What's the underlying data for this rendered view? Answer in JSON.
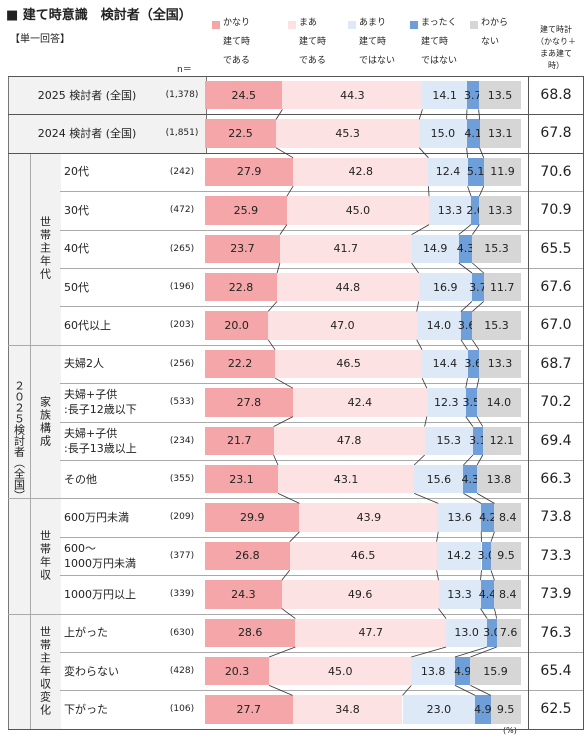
{
  "title": "■ 建て時意識　検討者（全国）",
  "subtitle": "【単一回答】",
  "n_header": "n＝",
  "total_header": [
    "建て時計",
    "（かなり＋",
    "まあ建て",
    "時）"
  ],
  "unit": "(%)",
  "legend": [
    {
      "lines": [
        "かなり",
        "建て時",
        "である"
      ],
      "color": "#f4a6a8"
    },
    {
      "lines": [
        "まあ",
        "建て時",
        "である"
      ],
      "color": "#fde2e3"
    },
    {
      "lines": [
        "あまり",
        "建て時",
        "ではない"
      ],
      "color": "#dde9f7"
    },
    {
      "lines": [
        "まったく",
        "建て時",
        "ではない"
      ],
      "color": "#6e9fd9"
    },
    {
      "lines": [
        "わから",
        "ない"
      ],
      "color": "#d6d6d6"
    }
  ],
  "groups": [
    {
      "label": "世帯主年代",
      "rows": [
        2,
        6
      ]
    },
    {
      "label": "家族構成",
      "rows": [
        7,
        10
      ]
    },
    {
      "label": "世帯年収",
      "rows": [
        11,
        13
      ]
    },
    {
      "label": "世帯主年収変化",
      "rows": [
        14,
        16
      ]
    }
  ],
  "outer_group": {
    "label": "２０２５検討者（全国）"
  },
  "chart_data": {
    "type": "bar",
    "stacked": true,
    "orientation": "horizontal",
    "xlim": [
      0,
      100
    ],
    "series_names": [
      "かなり建て時である",
      "まあ建て時である",
      "あまり建て時ではない",
      "まったく建て時ではない",
      "わからない"
    ],
    "rows": [
      {
        "label": "2025 検討者 (全国)",
        "n": "(1,378)",
        "values": [
          24.5,
          44.3,
          14.1,
          3.7,
          13.5
        ],
        "total": "68.8"
      },
      {
        "label": "2024 検討者 (全国)",
        "n": "(1,851)",
        "values": [
          22.5,
          45.3,
          15.0,
          4.1,
          13.1
        ],
        "total": "67.8"
      },
      {
        "label": "20代",
        "n": "(242)",
        "values": [
          27.9,
          42.8,
          12.4,
          5.1,
          11.9
        ],
        "total": "70.6"
      },
      {
        "label": "30代",
        "n": "(472)",
        "values": [
          25.9,
          45.0,
          13.3,
          2.6,
          13.3
        ],
        "total": "70.9"
      },
      {
        "label": "40代",
        "n": "(265)",
        "values": [
          23.7,
          41.7,
          14.9,
          4.3,
          15.3
        ],
        "total": "65.5"
      },
      {
        "label": "50代",
        "n": "(196)",
        "values": [
          22.8,
          44.8,
          16.9,
          3.7,
          11.7
        ],
        "total": "67.6"
      },
      {
        "label": "60代以上",
        "n": "(203)",
        "values": [
          20.0,
          47.0,
          14.0,
          3.6,
          15.3
        ],
        "total": "67.0"
      },
      {
        "label": "夫婦2人",
        "n": "(256)",
        "values": [
          22.2,
          46.5,
          14.4,
          3.6,
          13.3
        ],
        "total": "68.7"
      },
      {
        "label": "夫婦+子供\n:長子12歳以下",
        "n": "(533)",
        "values": [
          27.8,
          42.4,
          12.3,
          3.5,
          14.0
        ],
        "total": "70.2"
      },
      {
        "label": "夫婦+子供\n:長子13歳以上",
        "n": "(234)",
        "values": [
          21.7,
          47.8,
          15.3,
          3.1,
          12.1
        ],
        "total": "69.4"
      },
      {
        "label": "その他",
        "n": "(355)",
        "values": [
          23.1,
          43.1,
          15.6,
          4.3,
          13.8
        ],
        "total": "66.3"
      },
      {
        "label": "600万円未満",
        "n": "(209)",
        "values": [
          29.9,
          43.9,
          13.6,
          4.2,
          8.4
        ],
        "total": "73.8"
      },
      {
        "label": "600～\n1000万円未満",
        "n": "(377)",
        "values": [
          26.8,
          46.5,
          14.2,
          3.0,
          9.5
        ],
        "total": "73.3"
      },
      {
        "label": "1000万円以上",
        "n": "(339)",
        "values": [
          24.3,
          49.6,
          13.3,
          4.4,
          8.4
        ],
        "total": "73.9"
      },
      {
        "label": "上がった",
        "n": "(630)",
        "values": [
          28.6,
          47.7,
          13.0,
          3.0,
          7.6
        ],
        "total": "76.3"
      },
      {
        "label": "変わらない",
        "n": "(428)",
        "values": [
          20.3,
          45.0,
          13.8,
          4.9,
          15.9
        ],
        "total": "65.4"
      },
      {
        "label": "下がった",
        "n": "(106)",
        "values": [
          27.7,
          34.8,
          23.0,
          4.9,
          9.5
        ],
        "total": "62.5"
      }
    ]
  }
}
